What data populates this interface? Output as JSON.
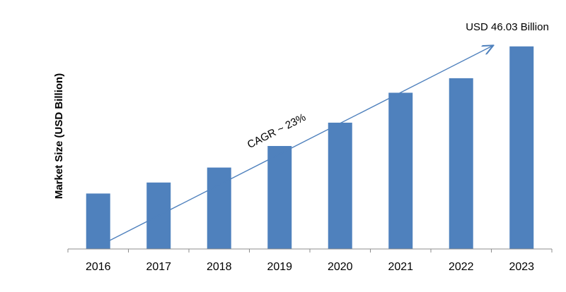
{
  "chart_data": {
    "type": "bar",
    "title": "",
    "xlabel": "",
    "ylabel": "Market Size (USD Billion)",
    "categories": [
      "2016",
      "2017",
      "2018",
      "2019",
      "2020",
      "2021",
      "2022",
      "2023"
    ],
    "values": [
      12.6,
      15.1,
      18.5,
      23.4,
      28.7,
      35.5,
      38.8,
      46.03
    ],
    "ylim": [
      0,
      50
    ],
    "grid": false,
    "legend": "none",
    "bar_color": "#4f81bd",
    "arrow_color": "#4f81bd",
    "annotations": {
      "last_value_label": "USD 46.03 Billion",
      "cagr_label": "CAGR ~ 23%"
    }
  }
}
